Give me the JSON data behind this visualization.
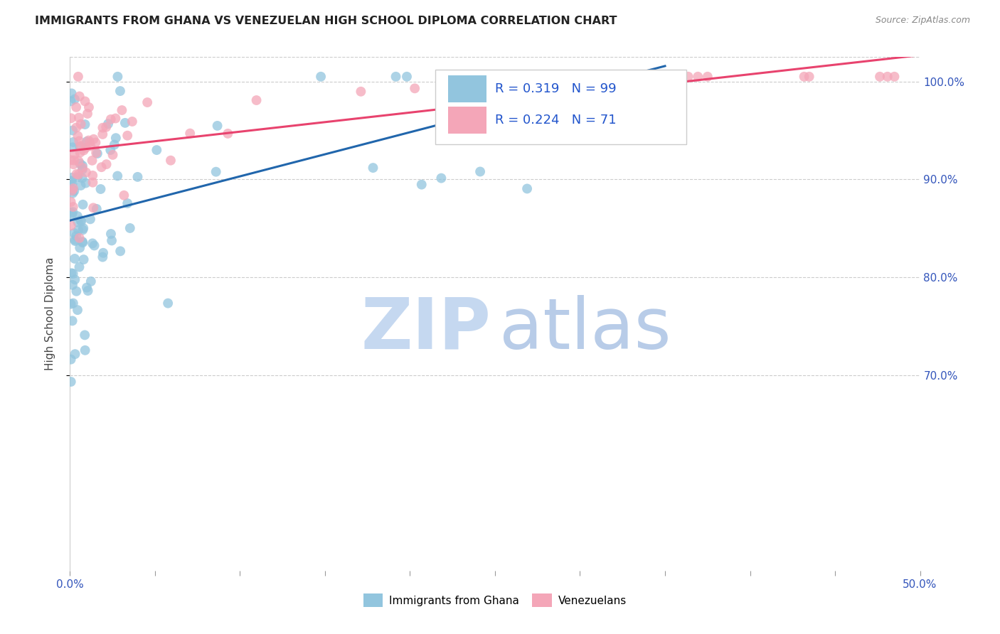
{
  "title": "IMMIGRANTS FROM GHANA VS VENEZUELAN HIGH SCHOOL DIPLOMA CORRELATION CHART",
  "source": "Source: ZipAtlas.com",
  "ylabel": "High School Diploma",
  "legend_label1": "Immigrants from Ghana",
  "legend_label2": "Venezuelans",
  "R1": 0.319,
  "N1": 99,
  "R2": 0.224,
  "N2": 71,
  "color_ghana": "#92c5de",
  "color_venezuela": "#f4a6b8",
  "color_trendline_ghana": "#2166ac",
  "color_trendline_venezuela": "#e8436e",
  "watermark_zip_color": "#c5d8f0",
  "watermark_atlas_color": "#b8cce8",
  "xmin": 0.0,
  "xmax": 0.5,
  "ymin": 0.5,
  "ymax": 1.025,
  "yticks": [
    0.7,
    0.8,
    0.9,
    1.0
  ],
  "ytick_labels": [
    "70.0%",
    "80.0%",
    "90.0%",
    "100.0%"
  ],
  "ghana_seed": 42,
  "venezuela_seed": 7
}
